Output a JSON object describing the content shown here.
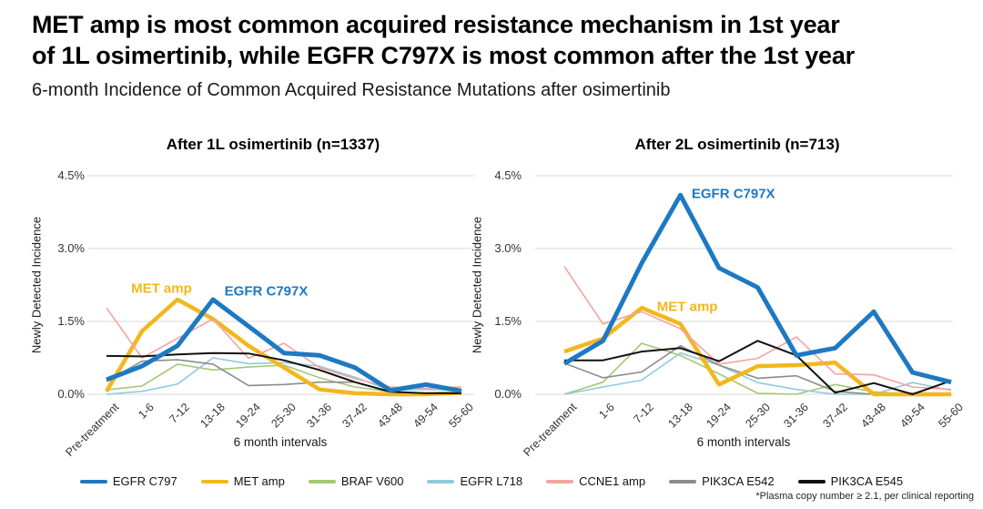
{
  "header": {
    "title_line1": "MET amp is most common acquired resistance mechanism in 1st year",
    "title_line2": "of 1L osimertinib, while EGFR C797X is most common after the 1st year",
    "subtitle": "6-month Incidence of Common Acquired Resistance Mutations after osimertinib"
  },
  "chart_data": [
    {
      "type": "line",
      "title": "After 1L osimertinib (n=1337)",
      "ylabel": "Newly Detected Incidence",
      "xlabel": "6 month intervals",
      "ylim": [
        0,
        4.5
      ],
      "yticks": [
        "4.5%",
        "3.0%",
        "1.5%",
        "0.0%"
      ],
      "grid": "horizontal",
      "categories": [
        "Pre-treatment",
        "1-6",
        "7-12",
        "13-18",
        "19-24",
        "25-30",
        "31-36",
        "37-42",
        "43-48",
        "49-54",
        "55-60"
      ],
      "series": [
        {
          "name": "EGFR C797",
          "color": "#1d79c2",
          "width": 5,
          "values": [
            0.3,
            0.58,
            1.0,
            1.95,
            1.4,
            0.85,
            0.8,
            0.55,
            0.08,
            0.2,
            0.07
          ]
        },
        {
          "name": "MET amp",
          "color": "#f3b71d",
          "width": 4.5,
          "values": [
            0.06,
            1.3,
            1.95,
            1.55,
            1.0,
            0.55,
            0.1,
            0.02,
            0.0,
            0.0,
            0.03
          ]
        },
        {
          "name": "BRAF V600",
          "color": "#a5c971",
          "width": 1.6,
          "values": [
            0.09,
            0.17,
            0.62,
            0.5,
            0.56,
            0.6,
            0.34,
            0.15,
            0.05,
            0.02,
            0.02
          ]
        },
        {
          "name": "EGFR L718",
          "color": "#8fcbdc",
          "width": 1.6,
          "values": [
            0.0,
            0.06,
            0.21,
            0.75,
            0.63,
            0.65,
            0.58,
            0.35,
            0.08,
            0.1,
            0.08
          ]
        },
        {
          "name": "CCNE1 amp",
          "color": "#f5a3a0",
          "width": 1.6,
          "values": [
            1.78,
            0.75,
            1.15,
            1.55,
            0.74,
            1.05,
            0.55,
            0.32,
            0.15,
            0.12,
            0.15
          ]
        },
        {
          "name": "PIK3CA E542",
          "color": "#8c8c8c",
          "width": 1.6,
          "values": [
            0.27,
            0.68,
            0.71,
            0.62,
            0.18,
            0.2,
            0.25,
            0.25,
            0.05,
            0.0,
            0.0
          ]
        },
        {
          "name": "PIK3CA E545",
          "color": "#111111",
          "width": 2,
          "values": [
            0.79,
            0.78,
            0.82,
            0.85,
            0.84,
            0.7,
            0.5,
            0.25,
            0.05,
            0.02,
            0.02
          ]
        }
      ],
      "annotations": [
        {
          "text": "MET amp",
          "color": "#f3b71d",
          "xi": 1.55,
          "y": 2.17
        },
        {
          "text": "EGFR C797X",
          "color": "#1d79c2",
          "xi": 4.5,
          "y": 2.12
        }
      ]
    },
    {
      "type": "line",
      "title": "After 2L osimertinib (n=713)",
      "ylabel": "Newly Detected Incidence",
      "xlabel": "6 month intervals",
      "ylim": [
        0,
        4.5
      ],
      "yticks": [
        "4.5%",
        "3.0%",
        "1.5%",
        "0.0%"
      ],
      "grid": "horizontal",
      "categories": [
        "Pre-treatment",
        "1-6",
        "7-12",
        "13-18",
        "19-24",
        "25-30",
        "31-36",
        "37-42",
        "43-48",
        "49-54",
        "55-60"
      ],
      "series": [
        {
          "name": "EGFR C797",
          "color": "#1d79c2",
          "width": 5,
          "values": [
            0.63,
            1.1,
            2.7,
            4.1,
            2.6,
            2.2,
            0.8,
            0.95,
            1.7,
            0.45,
            0.25
          ]
        },
        {
          "name": "MET amp",
          "color": "#f3b71d",
          "width": 4.5,
          "values": [
            0.88,
            1.15,
            1.78,
            1.45,
            0.2,
            0.58,
            0.6,
            0.65,
            0.0,
            0.0,
            0.0
          ]
        },
        {
          "name": "BRAF V600",
          "color": "#a5c971",
          "width": 1.6,
          "values": [
            0.0,
            0.25,
            1.05,
            0.8,
            0.42,
            0.02,
            0.0,
            0.2,
            0.05,
            0.0,
            0.0
          ]
        },
        {
          "name": "EGFR L718",
          "color": "#8fcbdc",
          "width": 1.6,
          "values": [
            0.0,
            0.15,
            0.29,
            0.85,
            0.6,
            0.24,
            0.1,
            0.0,
            0.0,
            0.24,
            0.08
          ]
        },
        {
          "name": "CCNE1 amp",
          "color": "#f5a3a0",
          "width": 1.6,
          "values": [
            2.63,
            1.45,
            1.7,
            1.35,
            0.62,
            0.74,
            1.18,
            0.42,
            0.4,
            0.15,
            0.1
          ]
        },
        {
          "name": "PIK3CA E542",
          "color": "#8c8c8c",
          "width": 1.6,
          "values": [
            0.64,
            0.34,
            0.46,
            1.0,
            0.6,
            0.33,
            0.38,
            0.06,
            0.0,
            0.0,
            0.0
          ]
        },
        {
          "name": "PIK3CA E545",
          "color": "#111111",
          "width": 2,
          "values": [
            0.7,
            0.7,
            0.88,
            0.95,
            0.68,
            1.1,
            0.8,
            0.03,
            0.23,
            0.0,
            0.28
          ]
        }
      ],
      "annotations": [
        {
          "text": "EGFR C797X",
          "color": "#1d79c2",
          "xi": 4.37,
          "y": 4.13
        },
        {
          "text": "MET amp",
          "color": "#f3b71d",
          "xi": 3.18,
          "y": 1.8
        }
      ]
    }
  ],
  "legend": {
    "items": [
      {
        "label": "EGFR C797",
        "color": "#1d79c2"
      },
      {
        "label": "MET amp",
        "color": "#f3b71d"
      },
      {
        "label": "BRAF V600",
        "color": "#a5c971"
      },
      {
        "label": "EGFR L718",
        "color": "#8fcbdc"
      },
      {
        "label": "CCNE1 amp",
        "color": "#f5a3a0"
      },
      {
        "label": "PIK3CA E542",
        "color": "#8c8c8c"
      },
      {
        "label": "PIK3CA E545",
        "color": "#111111"
      }
    ]
  },
  "footnote": "*Plasma copy number ≥ 2.1, per clinical reporting",
  "colors": {
    "gridline": "#d9d9d9",
    "background": "#ffffff"
  }
}
